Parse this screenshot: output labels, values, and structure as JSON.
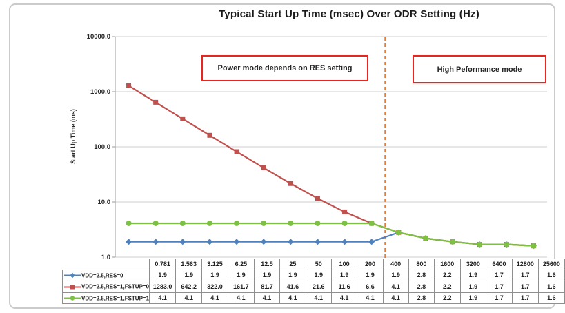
{
  "chart": {
    "title": "Typical Start Up Time (msec) Over ODR Setting (Hz)",
    "y_axis_title": "Start Up Time (ms)",
    "y_tick_labels": [
      "10000.0",
      "1000.0",
      "100.0",
      "10.0",
      "1.0"
    ],
    "annotations": [
      {
        "text": "Power mode depends on RES setting",
        "border_color": "#e8251f"
      },
      {
        "text": "High Peformance mode",
        "border_color": "#e8251f"
      }
    ],
    "divider_color": "#ED7D31",
    "gridline_color": "#cccccc",
    "axis_color": "#9a9a9a"
  },
  "chart_data": {
    "type": "line",
    "y_scale": "log",
    "ylim": [
      1,
      10000
    ],
    "title": "Typical Start Up Time (msec) Over ODR Setting (Hz)",
    "xlabel": "",
    "ylabel": "Start Up Time (ms)",
    "grid": "horizontal-log-decades",
    "legend_position": "data-table-left",
    "divider_between": [
      "400",
      "800"
    ],
    "categories": [
      "0.781",
      "1.563",
      "3.125",
      "6.25",
      "12.5",
      "25",
      "50",
      "100",
      "200",
      "400",
      "800",
      "1600",
      "3200",
      "6400",
      "12800",
      "25600"
    ],
    "series": [
      {
        "name": "VDD=2.5,RES=0",
        "color": "#4F81BD",
        "marker": "diamond",
        "values": [
          1.9,
          1.9,
          1.9,
          1.9,
          1.9,
          1.9,
          1.9,
          1.9,
          1.9,
          1.9,
          2.8,
          2.2,
          1.9,
          1.7,
          1.7,
          1.6
        ]
      },
      {
        "name": "VDD=2.5,RES=1,FSTUP=0",
        "color": "#C0504D",
        "marker": "square",
        "values": [
          1283.0,
          642.2,
          322.0,
          161.7,
          81.7,
          41.6,
          21.6,
          11.6,
          6.6,
          4.1,
          2.8,
          2.2,
          1.9,
          1.7,
          1.7,
          1.6
        ]
      },
      {
        "name": "VDD=2.5,RES=1,FSTUP=1",
        "color": "#7DC142",
        "marker": "circle",
        "values": [
          4.1,
          4.1,
          4.1,
          4.1,
          4.1,
          4.1,
          4.1,
          4.1,
          4.1,
          4.1,
          2.8,
          2.2,
          1.9,
          1.7,
          1.7,
          1.6
        ]
      }
    ]
  }
}
